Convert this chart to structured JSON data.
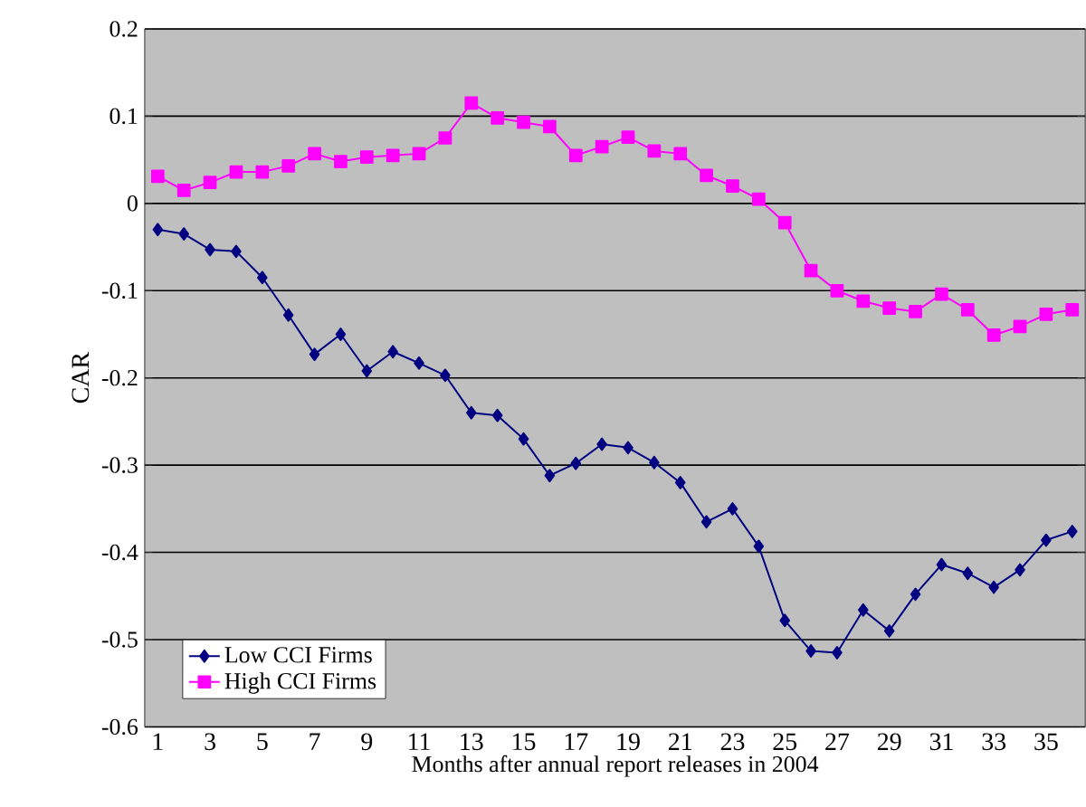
{
  "chart_data": {
    "type": "line",
    "xlabel": "Months after annual report releases in 2004",
    "ylabel": "CAR",
    "categories": [
      "1",
      null,
      "3",
      null,
      "5",
      null,
      "7",
      null,
      "9",
      null,
      "11",
      null,
      "13",
      null,
      "15",
      null,
      "17",
      null,
      "19",
      null,
      "21",
      null,
      "23",
      null,
      "25",
      null,
      "27",
      null,
      "29",
      null,
      "31",
      null,
      "33",
      null,
      "35",
      null
    ],
    "series": [
      {
        "name": "Low CCI Firms",
        "color": "#000080",
        "marker": "diamond",
        "values": [
          -0.03,
          -0.035,
          -0.053,
          -0.055,
          -0.085,
          -0.128,
          -0.173,
          -0.15,
          -0.192,
          -0.17,
          -0.183,
          -0.197,
          -0.24,
          -0.243,
          -0.27,
          -0.312,
          -0.298,
          -0.276,
          -0.28,
          -0.297,
          -0.32,
          -0.365,
          -0.35,
          -0.393,
          -0.478,
          -0.513,
          -0.515,
          -0.466,
          -0.49,
          -0.448,
          -0.414,
          -0.424,
          -0.44,
          -0.42,
          -0.386,
          -0.376
        ]
      },
      {
        "name": "High CCI Firms",
        "color": "#ff00ff",
        "marker": "square",
        "values": [
          0.031,
          0.015,
          0.024,
          0.036,
          0.036,
          0.043,
          0.057,
          0.048,
          0.053,
          0.055,
          0.057,
          0.075,
          0.115,
          0.098,
          0.093,
          0.088,
          0.055,
          0.065,
          0.076,
          0.06,
          0.057,
          0.032,
          0.02,
          0.005,
          -0.022,
          -0.077,
          -0.1,
          -0.112,
          -0.12,
          -0.124,
          -0.104,
          -0.122,
          -0.151,
          -0.141,
          -0.127,
          -0.122
        ]
      }
    ],
    "ylim": [
      -0.6,
      0.2
    ],
    "yticks": [
      0.2,
      0.1,
      0,
      -0.1,
      -0.2,
      -0.3,
      -0.4,
      -0.5,
      -0.6
    ],
    "grid": "y",
    "legend": "bottom left"
  }
}
